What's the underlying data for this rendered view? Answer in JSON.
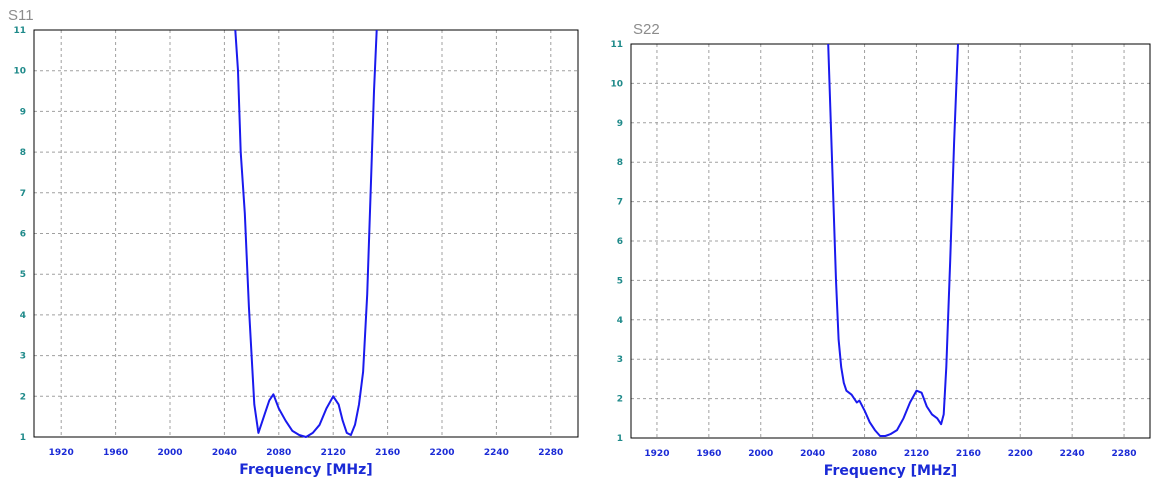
{
  "chart_data": [
    {
      "type": "line",
      "title": "S11",
      "xlabel": "Frequency [MHz]",
      "ylabel": "",
      "xlim": [
        1900,
        2300
      ],
      "ylim": [
        1,
        11
      ],
      "x_ticks": [
        1920,
        1960,
        2000,
        2040,
        2080,
        2120,
        2160,
        2200,
        2240,
        2280
      ],
      "y_ticks": [
        1,
        2,
        3,
        4,
        5,
        6,
        7,
        8,
        9,
        10,
        11
      ],
      "grid": true,
      "line_color": "#1a1aee",
      "series": [
        {
          "x": [
            2048,
            2050,
            2052,
            2055,
            2058,
            2060,
            2062,
            2065,
            2068,
            2070,
            2073,
            2076,
            2080,
            2085,
            2090,
            2095,
            2100,
            2105,
            2110,
            2115,
            2120,
            2124,
            2127,
            2130,
            2133,
            2136,
            2139,
            2142,
            2145,
            2148,
            2150,
            2152
          ],
          "y": [
            11,
            10,
            8,
            6.5,
            4.2,
            3,
            1.8,
            1.1,
            1.4,
            1.6,
            1.9,
            2.05,
            1.7,
            1.4,
            1.15,
            1.05,
            1.0,
            1.1,
            1.3,
            1.7,
            2.0,
            1.8,
            1.4,
            1.1,
            1.05,
            1.3,
            1.8,
            2.6,
            4.5,
            7.5,
            9.5,
            11
          ]
        }
      ]
    },
    {
      "type": "line",
      "title": "S22",
      "xlabel": "Frequency [MHz]",
      "ylabel": "",
      "xlim": [
        1900,
        2300
      ],
      "ylim": [
        1,
        11
      ],
      "x_ticks": [
        1920,
        1960,
        2000,
        2040,
        2080,
        2120,
        2160,
        2200,
        2240,
        2280
      ],
      "y_ticks": [
        1,
        2,
        3,
        4,
        5,
        6,
        7,
        8,
        9,
        10,
        11
      ],
      "grid": true,
      "line_color": "#1a1aee",
      "series": [
        {
          "x": [
            2052,
            2054,
            2056,
            2058,
            2060,
            2062,
            2064,
            2066,
            2070,
            2074,
            2076,
            2080,
            2084,
            2088,
            2092,
            2096,
            2100,
            2105,
            2110,
            2115,
            2120,
            2124,
            2128,
            2132,
            2136,
            2139,
            2141,
            2143,
            2146,
            2149,
            2152
          ],
          "y": [
            11,
            9,
            7,
            5,
            3.5,
            2.8,
            2.4,
            2.2,
            2.1,
            1.9,
            1.95,
            1.7,
            1.4,
            1.2,
            1.05,
            1.05,
            1.1,
            1.2,
            1.5,
            1.9,
            2.2,
            2.15,
            1.8,
            1.6,
            1.5,
            1.35,
            1.6,
            2.8,
            5.5,
            8.5,
            11
          ]
        }
      ]
    }
  ]
}
